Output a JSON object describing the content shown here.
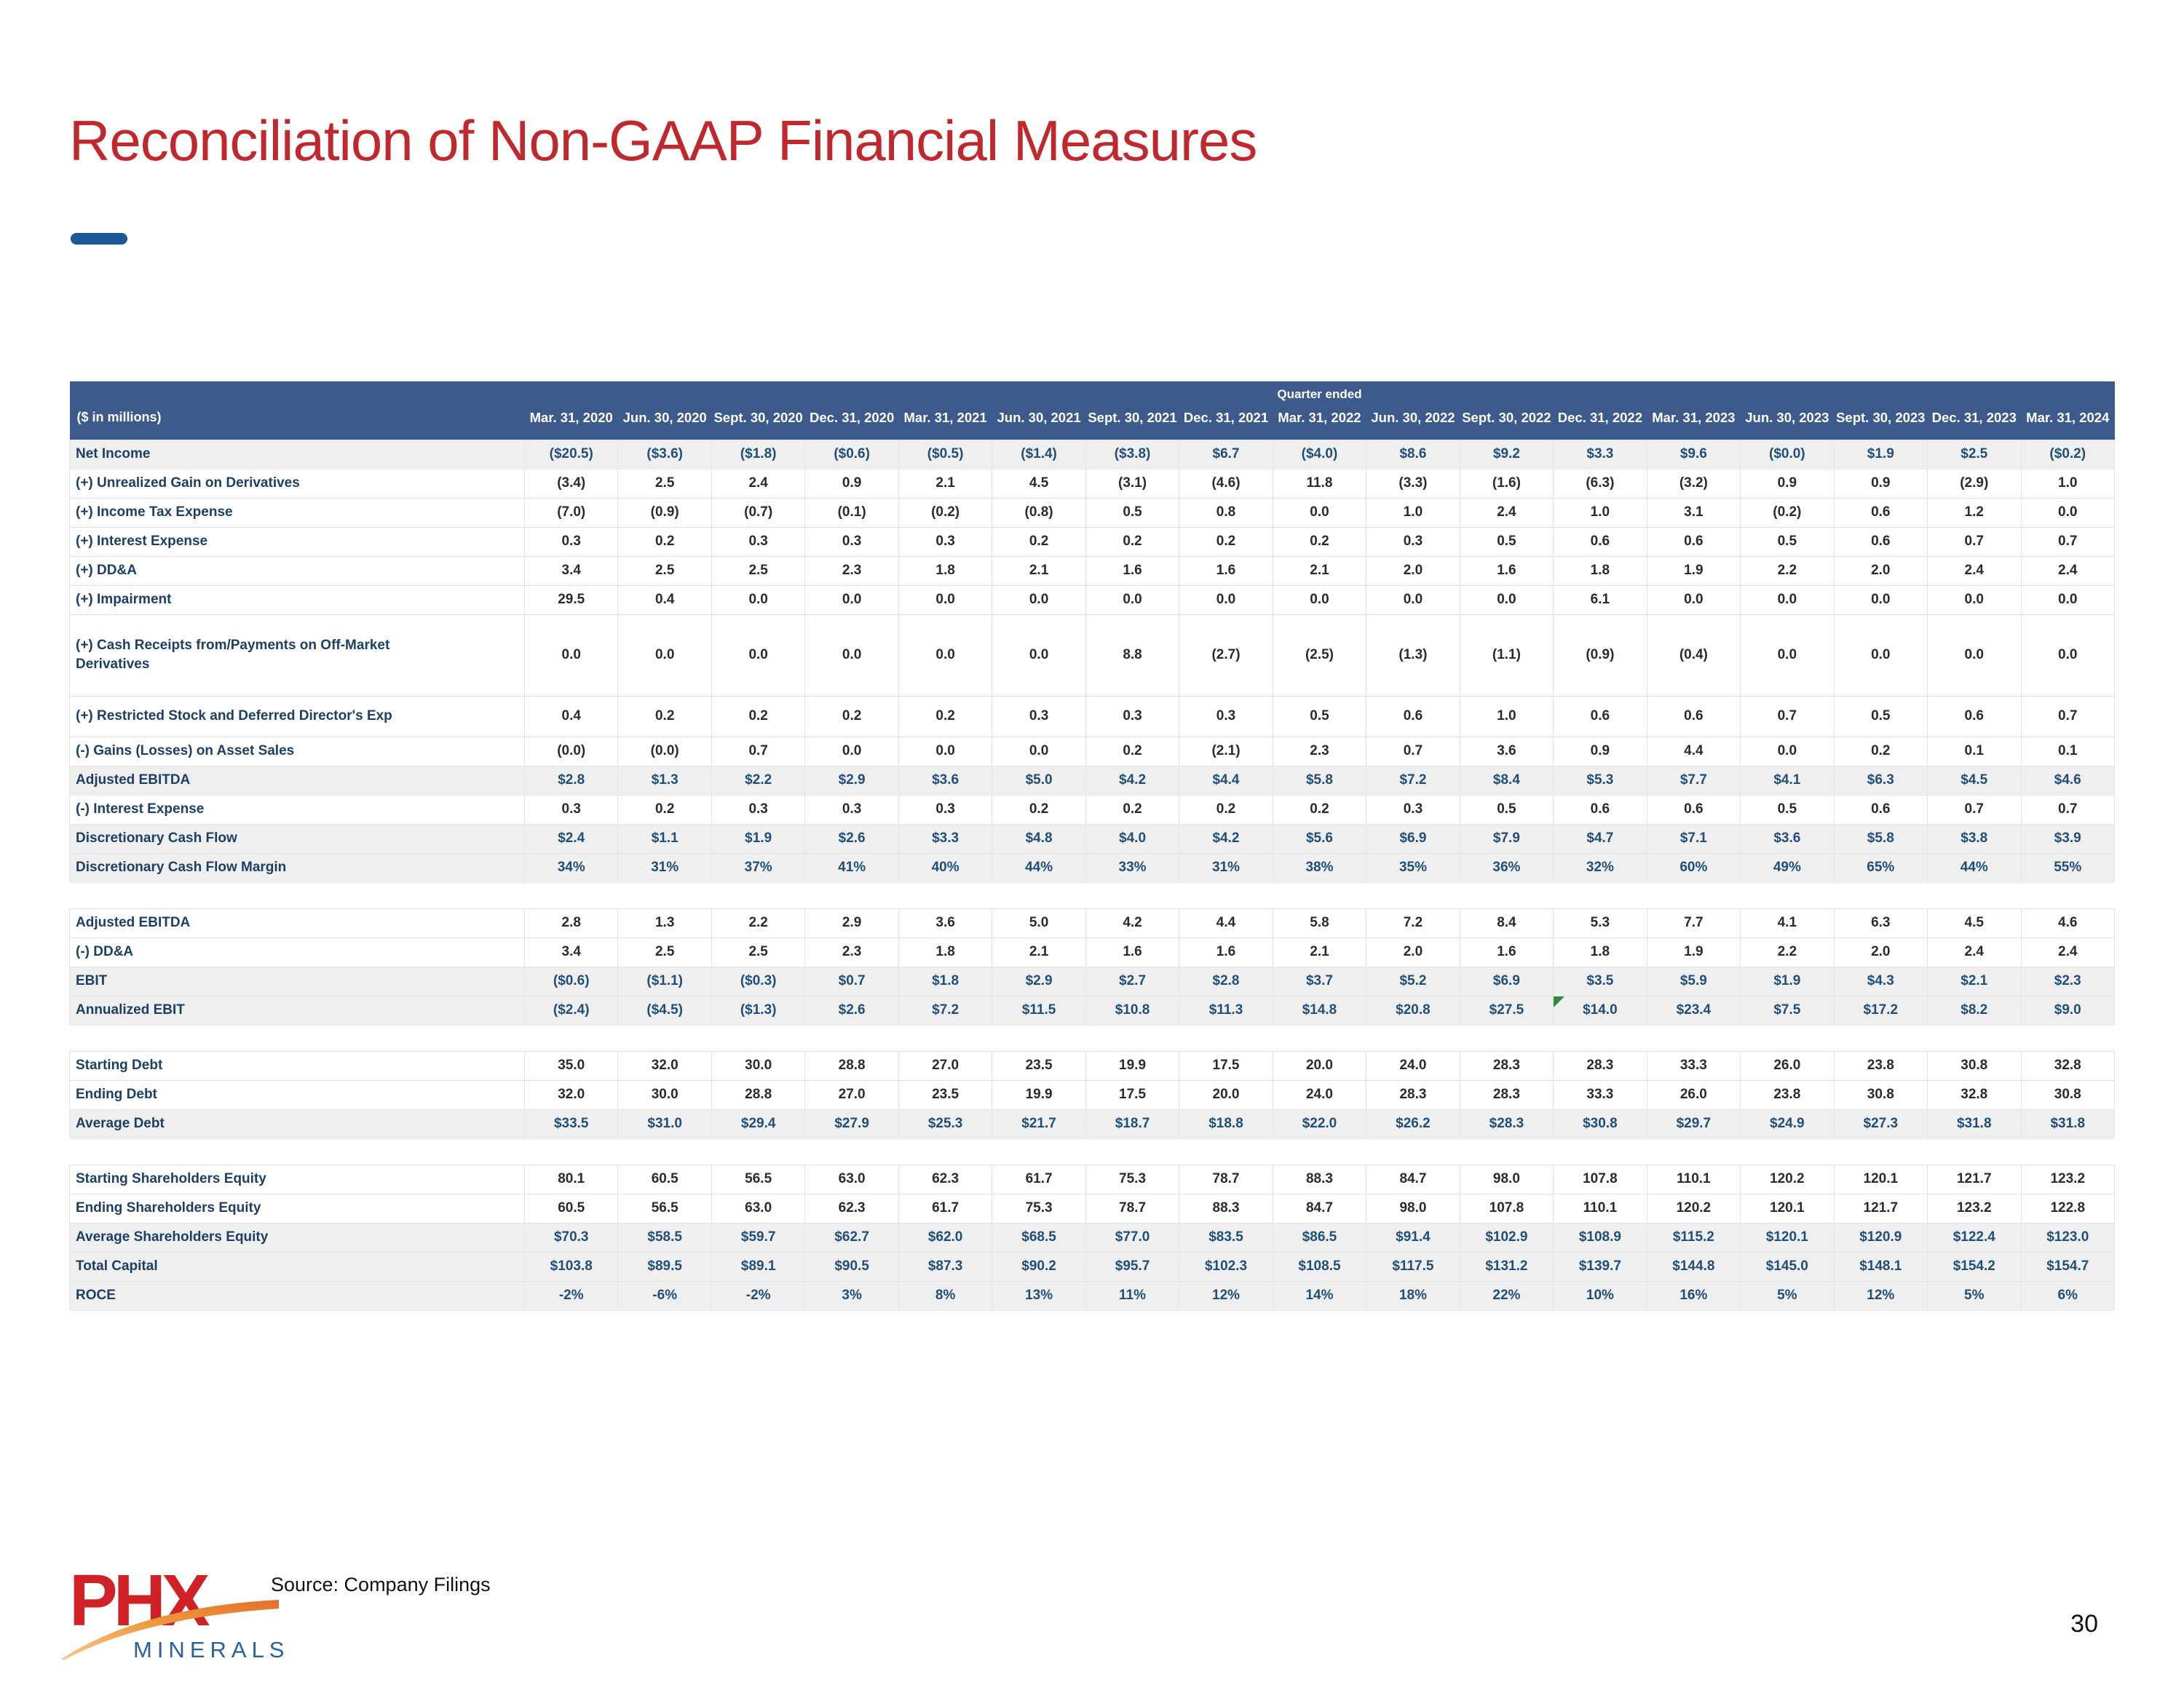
{
  "slide": {
    "title": "Reconciliation of Non-GAAP Financial Measures",
    "source": "Source: Company Filings",
    "page_number": "30"
  },
  "logo": {
    "brand": "PHX",
    "sub_brand": "MINERALS"
  },
  "colors": {
    "title_red": "#c0282d",
    "header_blue": "#3d5a8d",
    "label_navy": "#1d3f66",
    "total_navy": "#1f4e79",
    "shaded_row": "#efefef",
    "flag_green": "#2e8b3d",
    "logo_red": "#d02127",
    "logo_orange": "#f09a3e",
    "logo_blue": "#2a6099",
    "dash_blue": "#1b5a97"
  },
  "table": {
    "group_header": "Quarter ended",
    "unit_label": "($ in millions)",
    "columns": [
      "Mar. 31, 2020",
      "Jun. 30, 2020",
      "Sept. 30, 2020",
      "Dec. 31, 2020",
      "Mar. 31, 2021",
      "Jun. 30, 2021",
      "Sept. 30, 2021",
      "Dec. 31, 2021",
      "Mar. 31, 2022",
      "Jun. 30, 2022",
      "Sept. 30, 2022",
      "Dec. 31, 2022",
      "Mar. 31, 2023",
      "Jun. 30, 2023",
      "Sept. 30, 2023",
      "Dec. 31, 2023",
      "Mar. 31, 2024"
    ],
    "rows": [
      {
        "label": "Net Income",
        "type": "total",
        "values": [
          "($20.5)",
          "($3.6)",
          "($1.8)",
          "($0.6)",
          "($0.5)",
          "($1.4)",
          "($3.8)",
          "$6.7",
          "($4.0)",
          "$8.6",
          "$9.2",
          "$3.3",
          "$9.6",
          "($0.0)",
          "$1.9",
          "$2.5",
          "($0.2)"
        ]
      },
      {
        "label": "(+) Unrealized Gain on Derivatives",
        "type": "item",
        "values": [
          "(3.4)",
          "2.5",
          "2.4",
          "0.9",
          "2.1",
          "4.5",
          "(3.1)",
          "(4.6)",
          "11.8",
          "(3.3)",
          "(1.6)",
          "(6.3)",
          "(3.2)",
          "0.9",
          "0.9",
          "(2.9)",
          "1.0"
        ]
      },
      {
        "label": "(+) Income Tax Expense",
        "type": "item",
        "values": [
          "(7.0)",
          "(0.9)",
          "(0.7)",
          "(0.1)",
          "(0.2)",
          "(0.8)",
          "0.5",
          "0.8",
          "0.0",
          "1.0",
          "2.4",
          "1.0",
          "3.1",
          "(0.2)",
          "0.6",
          "1.2",
          "0.0"
        ]
      },
      {
        "label": "(+) Interest Expense",
        "type": "item",
        "values": [
          "0.3",
          "0.2",
          "0.3",
          "0.3",
          "0.3",
          "0.2",
          "0.2",
          "0.2",
          "0.2",
          "0.3",
          "0.5",
          "0.6",
          "0.6",
          "0.5",
          "0.6",
          "0.7",
          "0.7"
        ]
      },
      {
        "label": "(+) DD&A",
        "type": "item",
        "values": [
          "3.4",
          "2.5",
          "2.5",
          "2.3",
          "1.8",
          "2.1",
          "1.6",
          "1.6",
          "2.1",
          "2.0",
          "1.6",
          "1.8",
          "1.9",
          "2.2",
          "2.0",
          "2.4",
          "2.4"
        ]
      },
      {
        "label": "(+) Impairment",
        "type": "item",
        "values": [
          "29.5",
          "0.4",
          "0.0",
          "0.0",
          "0.0",
          "0.0",
          "0.0",
          "0.0",
          "0.0",
          "0.0",
          "0.0",
          "6.1",
          "0.0",
          "0.0",
          "0.0",
          "0.0",
          "0.0"
        ]
      },
      {
        "label": "(+) Cash Receipts from/Payments on Off-Market\nDerivatives",
        "type": "item",
        "tall": true,
        "values": [
          "0.0",
          "0.0",
          "0.0",
          "0.0",
          "0.0",
          "0.0",
          "8.8",
          "(2.7)",
          "(2.5)",
          "(1.3)",
          "(1.1)",
          "(0.9)",
          "(0.4)",
          "0.0",
          "0.0",
          "0.0",
          "0.0"
        ]
      },
      {
        "label": "(+) Restricted Stock and Deferred Director's Exp",
        "type": "item",
        "semitall": true,
        "values": [
          "0.4",
          "0.2",
          "0.2",
          "0.2",
          "0.2",
          "0.3",
          "0.3",
          "0.3",
          "0.5",
          "0.6",
          "1.0",
          "0.6",
          "0.6",
          "0.7",
          "0.5",
          "0.6",
          "0.7"
        ]
      },
      {
        "label": "(-) Gains (Losses) on Asset Sales",
        "type": "item",
        "values": [
          "(0.0)",
          "(0.0)",
          "0.7",
          "0.0",
          "0.0",
          "0.0",
          "0.2",
          "(2.1)",
          "2.3",
          "0.7",
          "3.6",
          "0.9",
          "4.4",
          "0.0",
          "0.2",
          "0.1",
          "0.1"
        ]
      },
      {
        "label": "Adjusted EBITDA",
        "type": "total",
        "values": [
          "$2.8",
          "$1.3",
          "$2.2",
          "$2.9",
          "$3.6",
          "$5.0",
          "$4.2",
          "$4.4",
          "$5.8",
          "$7.2",
          "$8.4",
          "$5.3",
          "$7.7",
          "$4.1",
          "$6.3",
          "$4.5",
          "$4.6"
        ]
      },
      {
        "label": "(-) Interest Expense",
        "type": "item",
        "values": [
          "0.3",
          "0.2",
          "0.3",
          "0.3",
          "0.3",
          "0.2",
          "0.2",
          "0.2",
          "0.2",
          "0.3",
          "0.5",
          "0.6",
          "0.6",
          "0.5",
          "0.6",
          "0.7",
          "0.7"
        ]
      },
      {
        "label": "Discretionary Cash Flow",
        "type": "total",
        "values": [
          "$2.4",
          "$1.1",
          "$1.9",
          "$2.6",
          "$3.3",
          "$4.8",
          "$4.0",
          "$4.2",
          "$5.6",
          "$6.9",
          "$7.9",
          "$4.7",
          "$7.1",
          "$3.6",
          "$5.8",
          "$3.8",
          "$3.9"
        ]
      },
      {
        "label": "Discretionary Cash Flow Margin",
        "type": "total",
        "values": [
          "34%",
          "31%",
          "37%",
          "41%",
          "40%",
          "44%",
          "33%",
          "31%",
          "38%",
          "35%",
          "36%",
          "32%",
          "60%",
          "49%",
          "65%",
          "44%",
          "55%"
        ]
      },
      {
        "type": "spacer"
      },
      {
        "label": "Adjusted EBITDA",
        "type": "item",
        "values": [
          "2.8",
          "1.3",
          "2.2",
          "2.9",
          "3.6",
          "5.0",
          "4.2",
          "4.4",
          "5.8",
          "7.2",
          "8.4",
          "5.3",
          "7.7",
          "4.1",
          "6.3",
          "4.5",
          "4.6"
        ]
      },
      {
        "label": "(-) DD&A",
        "type": "item",
        "values": [
          "3.4",
          "2.5",
          "2.5",
          "2.3",
          "1.8",
          "2.1",
          "1.6",
          "1.6",
          "2.1",
          "2.0",
          "1.6",
          "1.8",
          "1.9",
          "2.2",
          "2.0",
          "2.4",
          "2.4"
        ]
      },
      {
        "label": "EBIT",
        "type": "total",
        "values": [
          "($0.6)",
          "($1.1)",
          "($0.3)",
          "$0.7",
          "$1.8",
          "$2.9",
          "$2.7",
          "$2.8",
          "$3.7",
          "$5.2",
          "$6.9",
          "$3.5",
          "$5.9",
          "$1.9",
          "$4.3",
          "$2.1",
          "$2.3"
        ]
      },
      {
        "label": "Annualized EBIT",
        "type": "total",
        "flag_col": 11,
        "values": [
          "($2.4)",
          "($4.5)",
          "($1.3)",
          "$2.6",
          "$7.2",
          "$11.5",
          "$10.8",
          "$11.3",
          "$14.8",
          "$20.8",
          "$27.5",
          "$14.0",
          "$23.4",
          "$7.5",
          "$17.2",
          "$8.2",
          "$9.0"
        ]
      },
      {
        "type": "spacer"
      },
      {
        "label": "Starting Debt",
        "type": "item",
        "values": [
          "35.0",
          "32.0",
          "30.0",
          "28.8",
          "27.0",
          "23.5",
          "19.9",
          "17.5",
          "20.0",
          "24.0",
          "28.3",
          "28.3",
          "33.3",
          "26.0",
          "23.8",
          "30.8",
          "32.8"
        ]
      },
      {
        "label": "Ending Debt",
        "type": "item",
        "values": [
          "32.0",
          "30.0",
          "28.8",
          "27.0",
          "23.5",
          "19.9",
          "17.5",
          "20.0",
          "24.0",
          "28.3",
          "28.3",
          "33.3",
          "26.0",
          "23.8",
          "30.8",
          "32.8",
          "30.8"
        ]
      },
      {
        "label": "Average Debt",
        "type": "total",
        "values": [
          "$33.5",
          "$31.0",
          "$29.4",
          "$27.9",
          "$25.3",
          "$21.7",
          "$18.7",
          "$18.8",
          "$22.0",
          "$26.2",
          "$28.3",
          "$30.8",
          "$29.7",
          "$24.9",
          "$27.3",
          "$31.8",
          "$31.8"
        ]
      },
      {
        "type": "spacer"
      },
      {
        "label": "Starting Shareholders Equity",
        "type": "item",
        "values": [
          "80.1",
          "60.5",
          "56.5",
          "63.0",
          "62.3",
          "61.7",
          "75.3",
          "78.7",
          "88.3",
          "84.7",
          "98.0",
          "107.8",
          "110.1",
          "120.2",
          "120.1",
          "121.7",
          "123.2"
        ]
      },
      {
        "label": "Ending Shareholders Equity",
        "type": "item",
        "values": [
          "60.5",
          "56.5",
          "63.0",
          "62.3",
          "61.7",
          "75.3",
          "78.7",
          "88.3",
          "84.7",
          "98.0",
          "107.8",
          "110.1",
          "120.2",
          "120.1",
          "121.7",
          "123.2",
          "122.8"
        ]
      },
      {
        "label": "Average Shareholders Equity",
        "type": "total",
        "values": [
          "$70.3",
          "$58.5",
          "$59.7",
          "$62.7",
          "$62.0",
          "$68.5",
          "$77.0",
          "$83.5",
          "$86.5",
          "$91.4",
          "$102.9",
          "$108.9",
          "$115.2",
          "$120.1",
          "$120.9",
          "$122.4",
          "$123.0"
        ]
      },
      {
        "label": "Total Capital",
        "type": "total",
        "values": [
          "$103.8",
          "$89.5",
          "$89.1",
          "$90.5",
          "$87.3",
          "$90.2",
          "$95.7",
          "$102.3",
          "$108.5",
          "$117.5",
          "$131.2",
          "$139.7",
          "$144.8",
          "$145.0",
          "$148.1",
          "$154.2",
          "$154.7"
        ]
      },
      {
        "label": "ROCE",
        "type": "total",
        "values": [
          "-2%",
          "-6%",
          "-2%",
          "3%",
          "8%",
          "13%",
          "11%",
          "12%",
          "14%",
          "18%",
          "22%",
          "10%",
          "16%",
          "5%",
          "12%",
          "5%",
          "6%"
        ]
      }
    ]
  }
}
